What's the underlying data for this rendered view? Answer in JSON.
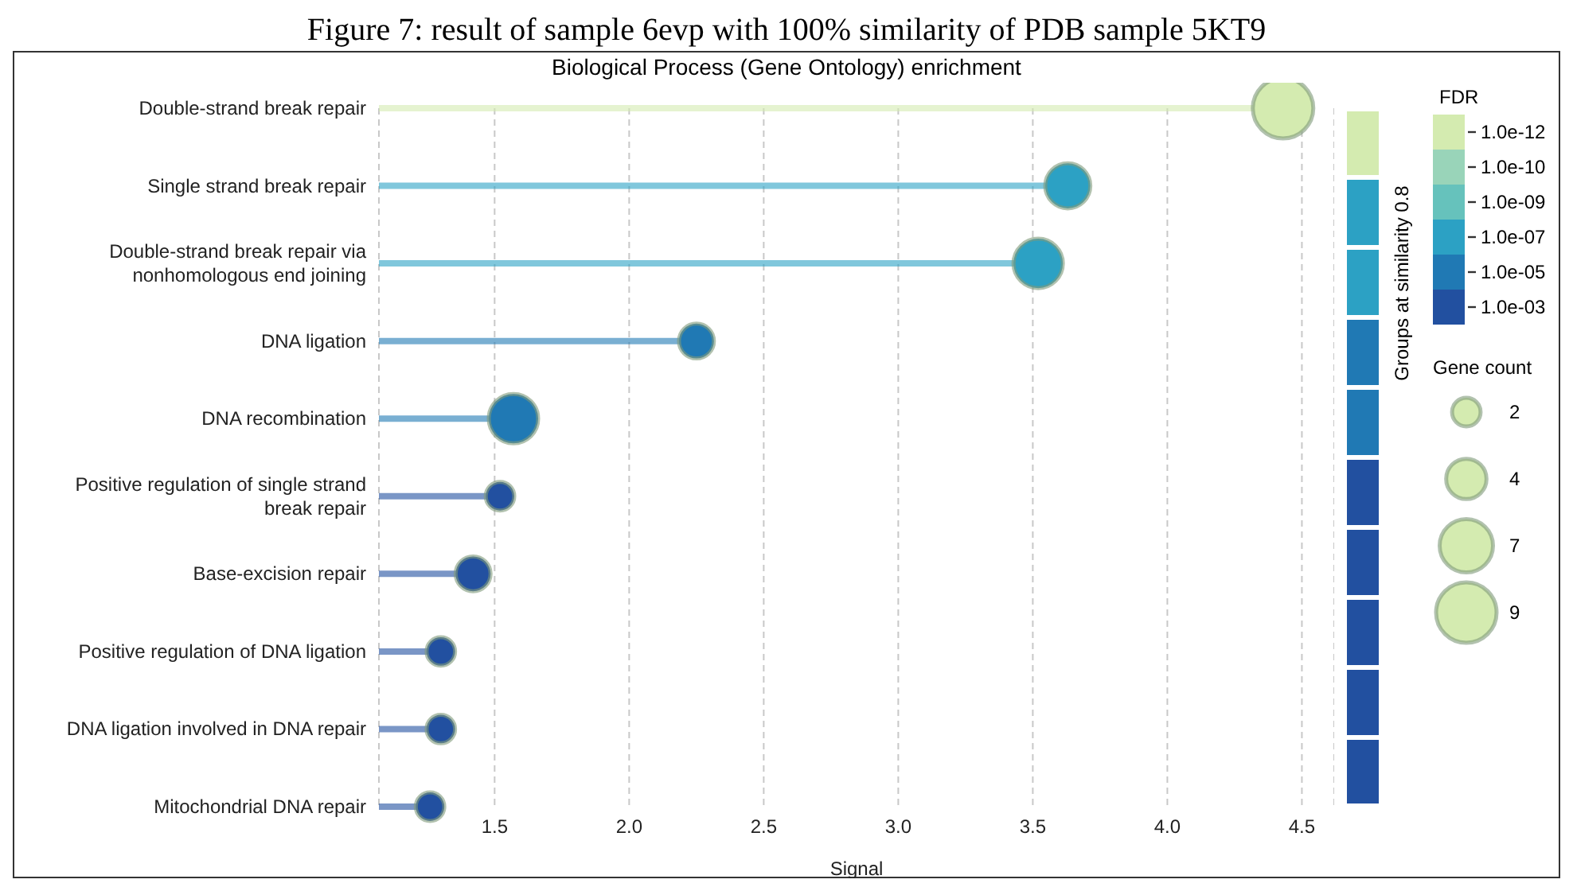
{
  "chart_data": {
    "type": "lollipop",
    "orientation": "horizontal",
    "title": "Figure 7: result of sample 6evp with 100% similarity of PDB sample 5KT9",
    "subtitle": "Biological Process (Gene Ontology) enrichment",
    "xlabel": "Signal",
    "y2label": "Groups at similarity 0.8",
    "clabel": "FDR",
    "legend_title": "Gene count",
    "categories": [
      "Double-strand break repair",
      "Single strand break repair",
      "Double-strand break repair via nonhomologous end joining",
      "DNA ligation",
      "DNA recombination",
      "Positive regulation of single strand break repair",
      "Base-excision repair",
      "Positive regulation of DNA ligation",
      "DNA ligation involved in DNA repair",
      "Mitochondrial DNA repair"
    ],
    "values": [
      4.43,
      3.63,
      3.52,
      2.25,
      1.57,
      1.52,
      1.42,
      1.3,
      1.3,
      1.26
    ],
    "sizes": [
      9,
      5,
      6,
      3,
      6,
      2,
      3,
      2,
      2,
      2
    ],
    "size_legend": [
      2,
      4,
      7,
      9
    ],
    "colors": [
      "#d4ebb0",
      "#2ca1c4",
      "#2ca1c4",
      "#2079b4",
      "#2079b4",
      "#2250a0",
      "#2250a0",
      "#2250a0",
      "#2250a0",
      "#2250a0"
    ],
    "cticks": [
      "1.0e-12",
      "1.0e-10",
      "1.0e-09",
      "1.0e-07",
      "1.0e-05",
      "1.0e-03"
    ],
    "xlim": [
      1.07,
      4.62
    ],
    "xticks": [
      1.5,
      {
        "value": 2,
        "label": "2.0"
      },
      2.5,
      {
        "value": 3,
        "label": "3.0"
      },
      3.5,
      {
        "value": 4,
        "label": "4.0"
      },
      4.5
    ],
    "grid": "x"
  }
}
